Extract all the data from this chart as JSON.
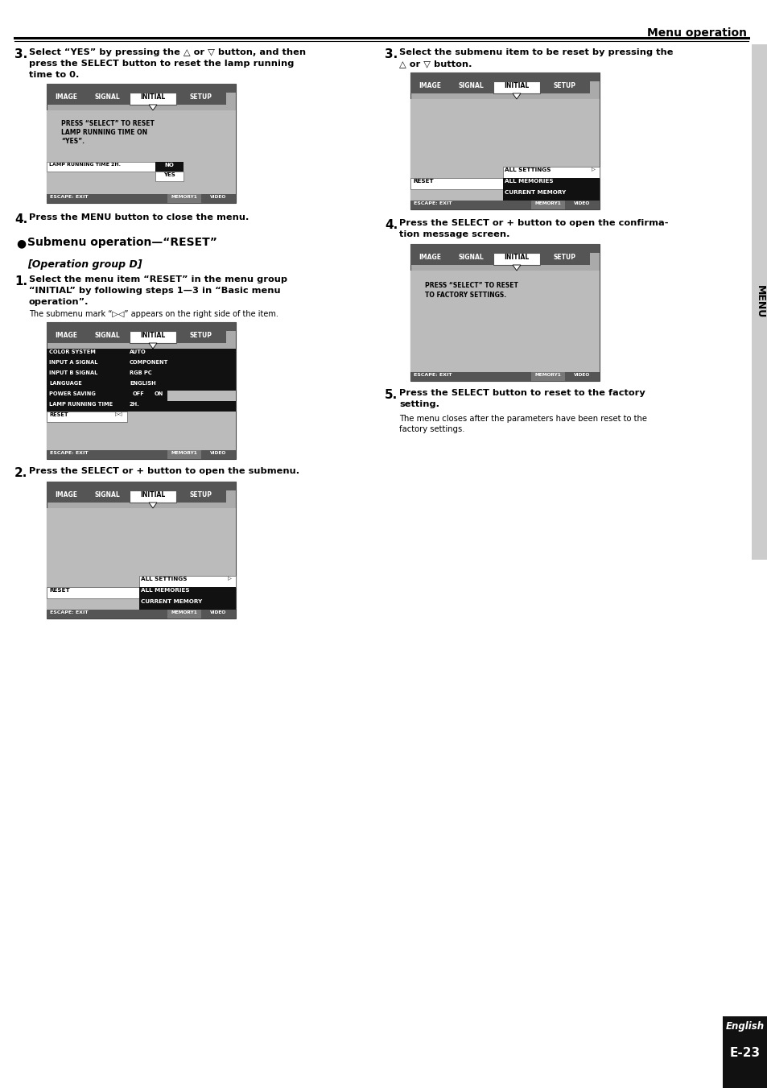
{
  "page_bg": "#ffffff",
  "header_text": "Menu operation",
  "menu_bg_dark": "#555555",
  "menu_bg_mid": "#777777",
  "menu_bg_light": "#bbbbbb",
  "menu_black": "#111111",
  "sidebar_gray": "#cccccc",
  "page_num_bg": "#111111",
  "tabs": [
    [
      "IMAGE",
      0,
      48
    ],
    [
      "SIGNAL",
      48,
      55
    ],
    [
      "INITIAL",
      103,
      58
    ],
    [
      "SETUP",
      161,
      62
    ]
  ],
  "tab_active_bg": "#ffffff",
  "tab_inactive_bg": "#555555",
  "status_bar_bg": "#555555",
  "status_memory_bg": "#777777",
  "status_video_bg": "#555555"
}
